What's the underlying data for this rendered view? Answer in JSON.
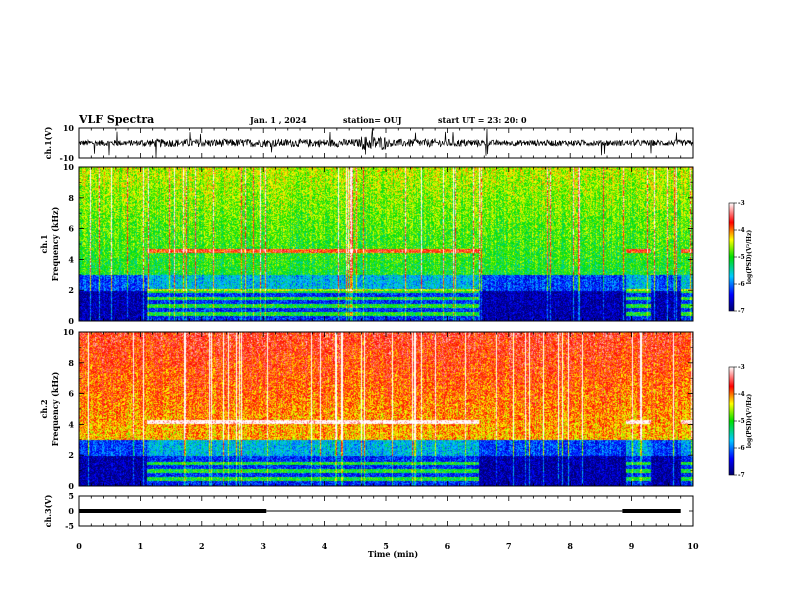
{
  "header": {
    "title": "VLF Spectra",
    "date": "Jan. 1 , 2024",
    "station": "station= OUJ",
    "start": "start UT = 23: 20: 0"
  },
  "colors": {
    "low": "#00008b",
    "mid": "#00c8ff",
    "green": "#00dc00",
    "yellow": "#ffff00",
    "high": "#ff0000",
    "hot": "#ffffff"
  },
  "chart_data": [
    {
      "type": "line",
      "name": "waveform-ch1",
      "ylabel": "ch.1(V)",
      "ylim": [
        -10,
        10
      ],
      "yticks": [
        "10",
        "-10"
      ],
      "xlim": [
        0,
        10
      ]
    },
    {
      "type": "heatmap",
      "name": "spectrogram-ch1",
      "ylabel_line1": "ch.1",
      "ylabel_line2": "Frequency (kHz)",
      "ylim": [
        0,
        10
      ],
      "yticks": [
        "0",
        "2",
        "4",
        "6",
        "8",
        "10"
      ],
      "xlim": [
        0,
        10
      ],
      "colorbar": {
        "label": "log(PSD)(V²/Hz)",
        "ticks": [
          "-3",
          "-4",
          "-5",
          "-6",
          "-7"
        ],
        "range": [
          -7,
          -3
        ]
      },
      "bands_khz": [
        0.5,
        1.0,
        1.5,
        2.0,
        4.6
      ],
      "quiet_intervals_min": [
        [
          0,
          1.1
        ],
        [
          6.5,
          8.9
        ],
        [
          9.3,
          9.8
        ]
      ]
    },
    {
      "type": "heatmap",
      "name": "spectrogram-ch2",
      "ylabel_line1": "ch.2",
      "ylabel_line2": "Frequency (kHz)",
      "ylim": [
        0,
        10
      ],
      "yticks": [
        "0",
        "2",
        "4",
        "6",
        "8",
        "10"
      ],
      "xlim": [
        0,
        10
      ],
      "colorbar": {
        "label": "log(PSD)(V²/Hz)",
        "ticks": [
          "-3",
          "-4",
          "-5",
          "-6",
          "-7"
        ],
        "range": [
          -7,
          -3
        ]
      },
      "bands_khz": [
        0.5,
        1.0,
        1.5,
        4.2
      ],
      "quiet_intervals_min": [
        [
          0,
          1.1
        ],
        [
          6.5,
          8.9
        ],
        [
          9.3,
          9.8
        ]
      ]
    },
    {
      "type": "line",
      "name": "ch3",
      "ylabel": "ch.3(V)",
      "ylim": [
        -5,
        5
      ],
      "yticks": [
        "5",
        "0",
        "-5"
      ],
      "xlim": [
        0,
        10
      ],
      "xlabel": "Time (min)",
      "xticks": [
        "0",
        "1",
        "2",
        "3",
        "4",
        "5",
        "6",
        "7",
        "8",
        "9",
        "10"
      ],
      "thick_segments": [
        {
          "x": [
            0,
            3.05
          ],
          "y": 0
        },
        {
          "x": [
            8.85,
            9.8
          ],
          "y": 0
        }
      ],
      "thin_segment": {
        "x": [
          3.05,
          8.85
        ],
        "y": 0
      }
    }
  ]
}
